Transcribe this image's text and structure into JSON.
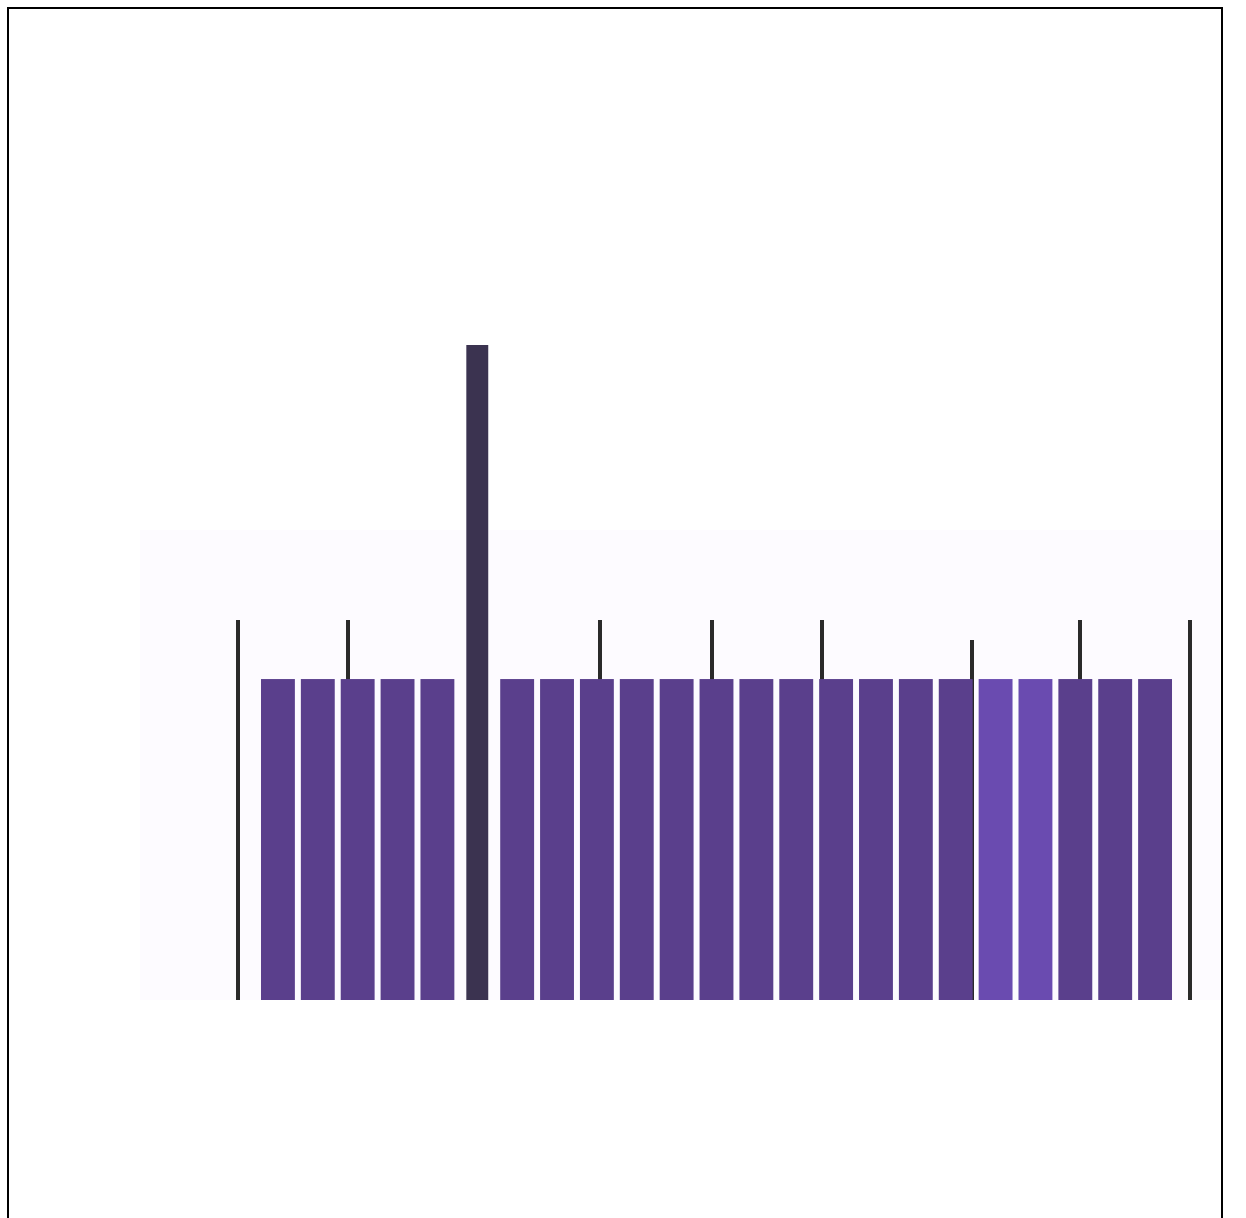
{
  "chart_data": {
    "type": "bar",
    "categories": [
      null,
      null,
      null,
      null,
      null,
      null,
      null,
      null,
      null,
      null,
      null,
      null,
      null,
      null,
      null,
      null,
      null,
      null,
      null,
      null,
      null,
      null,
      null
    ],
    "values": [
      49,
      49,
      49,
      49,
      49,
      100,
      49,
      49,
      49,
      49,
      49,
      49,
      49,
      49,
      49,
      49,
      49,
      49,
      49,
      49,
      49,
      49,
      49
    ],
    "colors": [
      "#5a3f8c",
      "#5a3f8c",
      "#5a3f8c",
      "#5a3f8c",
      "#5a3f8c",
      "#3b3350",
      "#5a3f8c",
      "#5a3f8c",
      "#5a3f8c",
      "#5a3f8c",
      "#5a3f8c",
      "#5a3f8c",
      "#5a3f8c",
      "#5a3f8c",
      "#5a3f8c",
      "#5a3f8c",
      "#5a3f8c",
      "#5a3f8c",
      "#6a4bb0",
      "#6a4bb0",
      "#5a3f8c",
      "#5a3f8c",
      "#5a3f8c"
    ],
    "ylim": [
      0,
      100
    ]
  }
}
